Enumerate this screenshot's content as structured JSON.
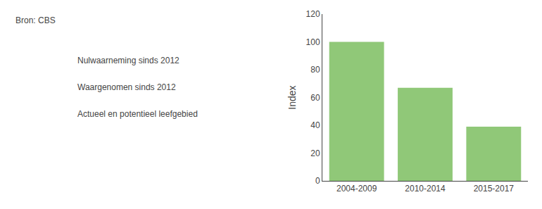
{
  "chart_data": {
    "type": "bar",
    "categories": [
      "2004-2009",
      "2010-2014",
      "2015-2017"
    ],
    "values": [
      100,
      67,
      39
    ],
    "color": "#90C878",
    "ylabel": "Index",
    "ylim": [
      0,
      120
    ],
    "yticks": [
      0,
      20,
      40,
      60,
      80,
      100,
      120
    ],
    "grid": false,
    "annotations": [
      "Bron: CBS",
      "Nulwaarneming sinds 2012",
      "Waargenomen sinds 2012",
      "Actueel en potentieel leefgebied"
    ]
  }
}
